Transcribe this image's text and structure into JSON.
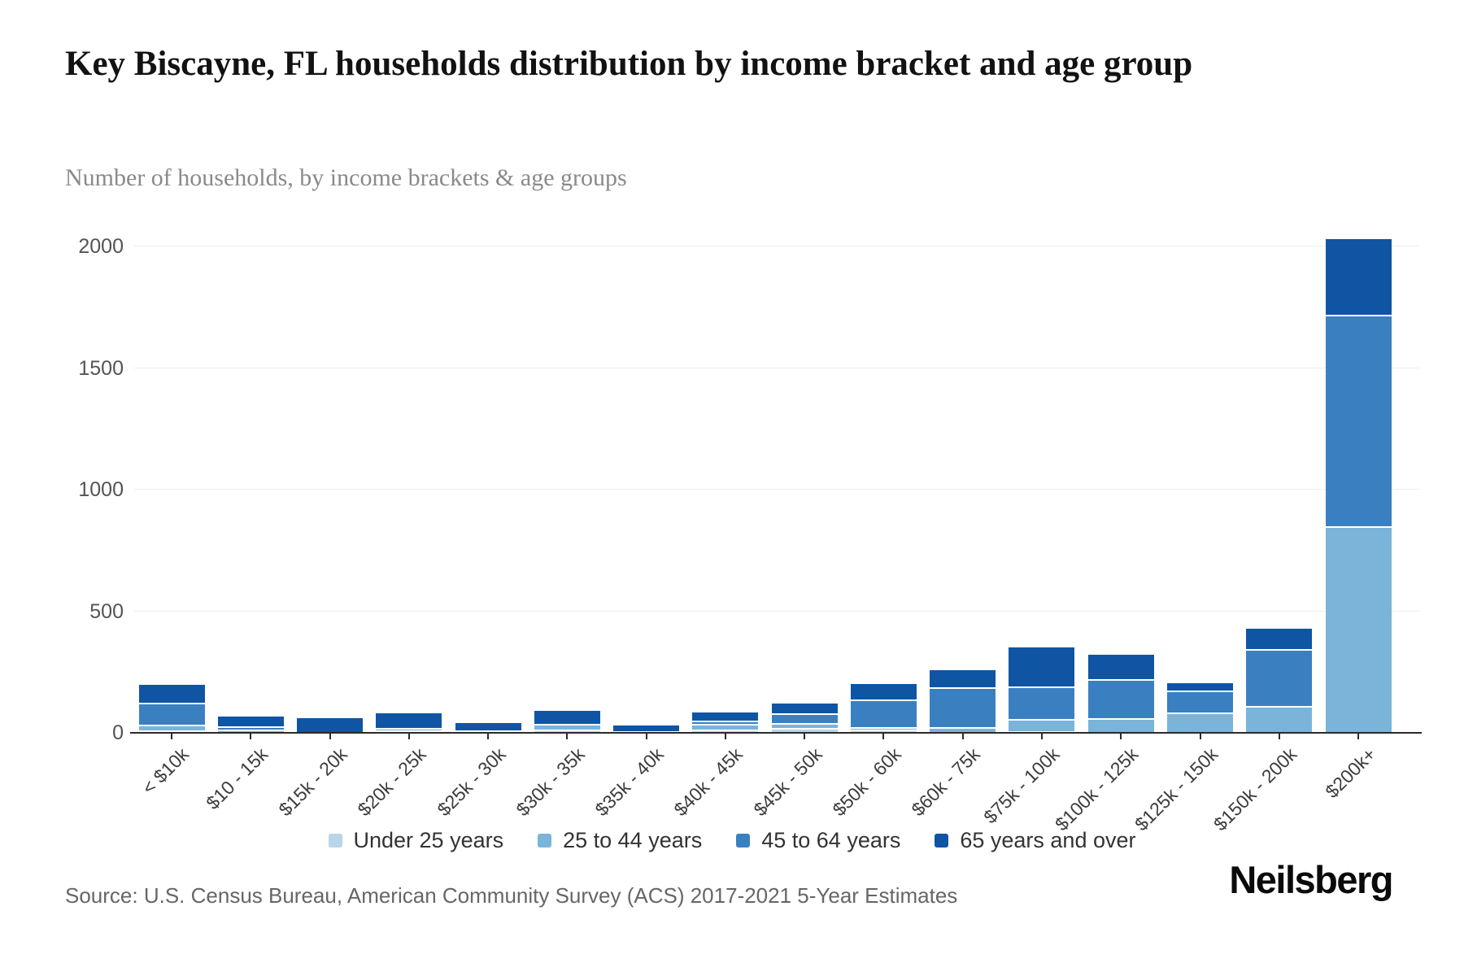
{
  "header": {
    "title": "Key Biscayne, FL households distribution by income bracket and age group",
    "subtitle": "Number of households, by income brackets & age groups"
  },
  "chart_data": {
    "type": "bar",
    "stacked": true,
    "title": "Key Biscayne, FL households distribution by income bracket and age group",
    "subtitle": "Number of households, by income brackets & age groups",
    "xlabel": "",
    "ylabel": "",
    "ylim": [
      0,
      2000
    ],
    "yticks": [
      0,
      500,
      1000,
      1500,
      2000
    ],
    "grid": true,
    "legend_position": "bottom",
    "categories": [
      "< $10k",
      "$10 - 15k",
      "$15k - 20k",
      "$20k - 25k",
      "$25k - 30k",
      "$30k - 35k",
      "$35k - 40k",
      "$40k - 45k",
      "$45k - 50k",
      "$50k - 60k",
      "$60k - 75k",
      "$75k - 100k",
      "$100k - 125k",
      "$125k - 150k",
      "$150k - 200k",
      "$200k+"
    ],
    "series": [
      {
        "name": "Under 25 years",
        "color": "#b8d5e9",
        "values": [
          10,
          0,
          0,
          10,
          0,
          15,
          5,
          15,
          20,
          15,
          0,
          5,
          0,
          0,
          0,
          0
        ]
      },
      {
        "name": "25 to 44 years",
        "color": "#7ab4d9",
        "values": [
          25,
          15,
          0,
          10,
          10,
          25,
          0,
          25,
          20,
          10,
          25,
          50,
          60,
          85,
          110,
          850
        ]
      },
      {
        "name": "45 to 64 years",
        "color": "#3a80c1",
        "values": [
          90,
          15,
          0,
          0,
          0,
          0,
          0,
          15,
          40,
          115,
          165,
          135,
          160,
          90,
          235,
          870
        ]
      },
      {
        "name": "65 years and over",
        "color": "#0f55a3",
        "values": [
          75,
          40,
          60,
          60,
          30,
          55,
          25,
          35,
          40,
          65,
          70,
          160,
          100,
          30,
          85,
          310
        ]
      }
    ]
  },
  "colors": {
    "gridline": "#ededed",
    "axis": "#2b2b2b",
    "separator": "#ffffff"
  },
  "footer": {
    "source": "Source: U.S. Census Bureau, American Community Survey (ACS) 2017-2021 5-Year Estimates",
    "brand": "Neilsberg"
  }
}
